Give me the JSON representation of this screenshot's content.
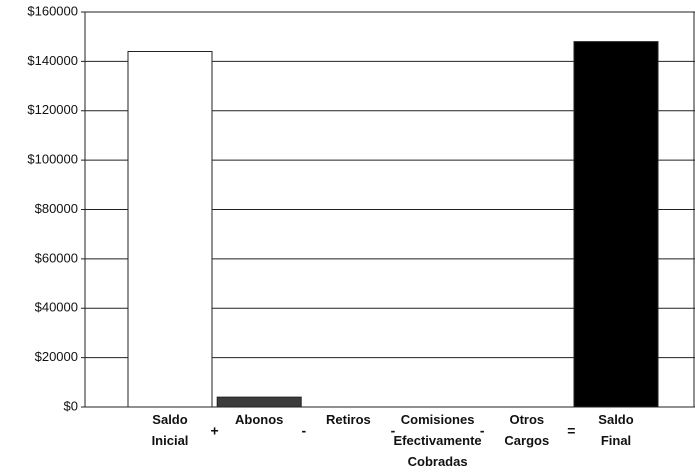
{
  "chart_data": {
    "type": "bar",
    "categories": [
      [
        "Saldo",
        "Inicial"
      ],
      [
        "Abonos"
      ],
      [
        "Retiros"
      ],
      [
        "Comisiones",
        "Efectivamente",
        "Cobradas"
      ],
      [
        "Otros",
        "Cargos"
      ],
      [
        "Saldo",
        "Final"
      ]
    ],
    "operators": [
      "+",
      "-",
      "-",
      "-",
      "="
    ],
    "values": [
      144000,
      4000,
      0,
      0,
      0,
      148000
    ],
    "colors": [
      "#ffffff",
      "#3c3c3c",
      "#000000",
      "#000000",
      "#000000",
      "#000000"
    ],
    "ylim": [
      0,
      160000
    ],
    "yticks": [
      {
        "value": 0,
        "label": "$0"
      },
      {
        "value": 20000,
        "label": "$20000"
      },
      {
        "value": 40000,
        "label": "$40000"
      },
      {
        "value": 60000,
        "label": "$60000"
      },
      {
        "value": 80000,
        "label": "$80000"
      },
      {
        "value": 100000,
        "label": "$100000"
      },
      {
        "value": 120000,
        "label": "$120000"
      },
      {
        "value": 140000,
        "label": "$140000"
      },
      {
        "value": 160000,
        "label": "$160000"
      }
    ],
    "grid": true
  }
}
